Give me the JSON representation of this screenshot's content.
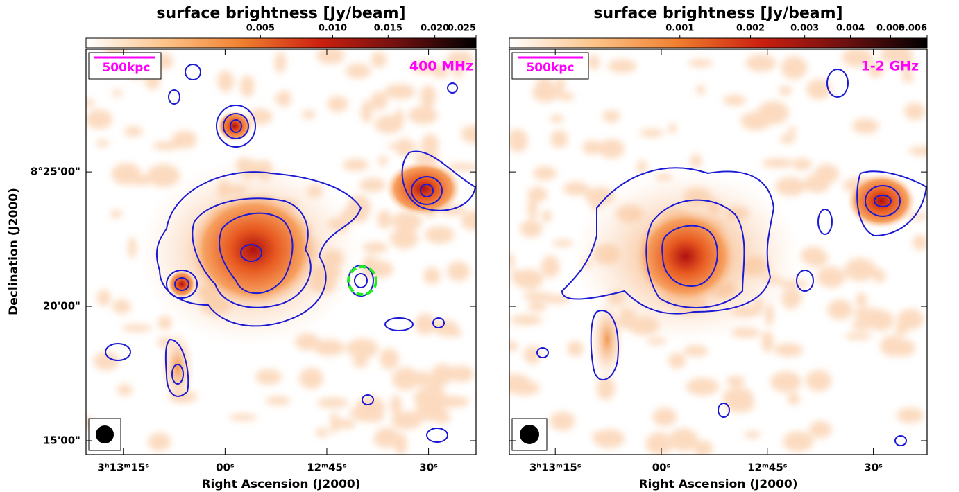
{
  "chart_data": [
    {
      "type": "image",
      "colorbar": {
        "label": "surface brightness [Jy/beam]",
        "scale": "sqrt",
        "lim": [
          0,
          0.025
        ],
        "ticks": [
          0.005,
          {
            "value": 0.01,
            "label": "0.010"
          },
          0.015,
          {
            "value": 0.02,
            "label": "0.020"
          },
          0.025
        ]
      },
      "frequency": "400 MHz",
      "scale_bar": "500kpc",
      "xlabel": "Right Ascension (J2000)",
      "ylabel": "Declination (J2000)",
      "xlim": [
        11600.5,
        11543
      ],
      "xticks": [
        {
          "value": 11595,
          "label": "3ʰ13ᵐ15ˢ"
        },
        {
          "value": 11580,
          "label": "00ˢ"
        },
        {
          "value": 11565,
          "label": "12ᵐ45ˢ"
        },
        {
          "value": 11550,
          "label": "30ˢ"
        }
      ],
      "ylim": [
        29669,
        30574
      ],
      "yticks": [
        {
          "value": 30300,
          "label": "8°25'00\""
        },
        {
          "value": 30000,
          "label": "20'00\""
        },
        {
          "value": 29700,
          "label": "15'00\""
        }
      ]
    },
    {
      "type": "image",
      "colorbar": {
        "label": "surface brightness [Jy/beam]",
        "scale": "sqrt",
        "lim": [
          0,
          0.006
        ],
        "ticks": [
          0.001,
          0.002,
          0.003,
          0.004,
          0.005,
          0.006
        ]
      },
      "frequency": "1-2 GHz",
      "scale_bar": "500kpc",
      "xlabel": "Right Ascension (J2000)",
      "xlim": [
        11601.5,
        11542.4
      ],
      "xticks": [
        {
          "value": 11595,
          "label": "3ʰ13ᵐ15ˢ"
        },
        {
          "value": 11580,
          "label": "00ˢ"
        },
        {
          "value": 11565,
          "label": "12ᵐ45ˢ"
        },
        {
          "value": 11550,
          "label": "30ˢ"
        }
      ],
      "ylim": [
        29669,
        30574
      ],
      "yticks": [
        30300,
        30000,
        29700
      ]
    }
  ]
}
